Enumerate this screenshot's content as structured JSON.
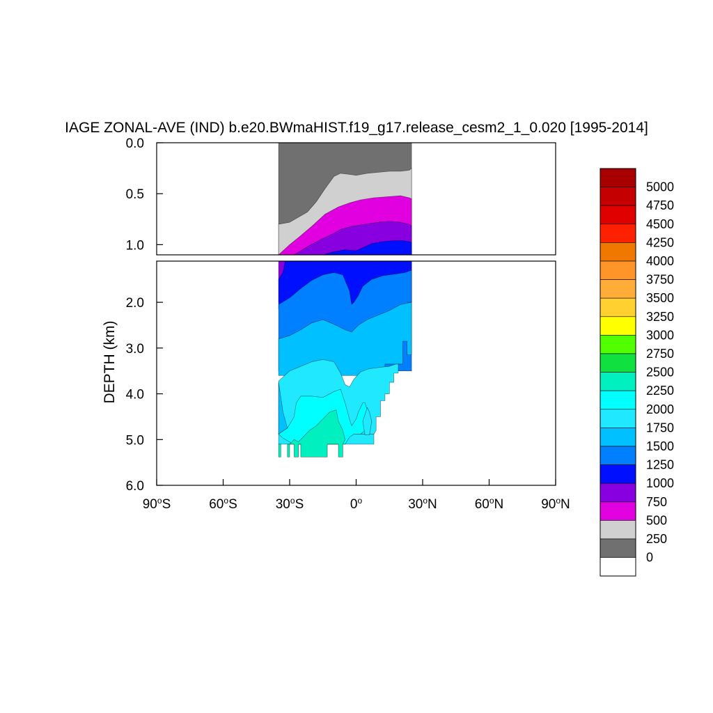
{
  "chart_data": {
    "type": "heatmap",
    "title": "IAGE ZONAL-AVE (IND) b.e20.BWmaHIST.f19_g17.release_cesm2_1_0.020 [1995-2014]",
    "xlabel": "",
    "ylabel": "DEPTH (km)",
    "xlim": [
      -90,
      90
    ],
    "ylim": [
      6.0,
      0.0
    ],
    "x_ticks": [
      {
        "value": -90,
        "num": "90",
        "hemi": "S"
      },
      {
        "value": -60,
        "num": "60",
        "hemi": "S"
      },
      {
        "value": -30,
        "num": "30",
        "hemi": "S"
      },
      {
        "value": 0,
        "num": "0",
        "hemi": ""
      },
      {
        "value": 30,
        "num": "30",
        "hemi": "N"
      },
      {
        "value": 60,
        "num": "60",
        "hemi": "N"
      },
      {
        "value": 90,
        "num": "90",
        "hemi": "N"
      }
    ],
    "upper_panel": {
      "depth_range": [
        0.0,
        1.1
      ],
      "y_ticks": [
        {
          "value": 0.0,
          "label": "0.0"
        },
        {
          "value": 0.5,
          "label": "0.5"
        },
        {
          "value": 1.0,
          "label": "1.0"
        }
      ]
    },
    "lower_panel": {
      "depth_range": [
        1.1,
        6.0
      ],
      "y_ticks": [
        {
          "value": 2.0,
          "label": "2.0"
        },
        {
          "value": 3.0,
          "label": "3.0"
        },
        {
          "value": 4.0,
          "label": "4.0"
        },
        {
          "value": 5.0,
          "label": "5.0"
        },
        {
          "value": 6.0,
          "label": "6.0"
        }
      ]
    },
    "contour_levels": [
      0,
      250,
      500,
      750,
      1000,
      1250,
      1500,
      1750,
      2000,
      2250,
      2500,
      2750,
      3000,
      3250,
      3500,
      3750,
      4000,
      4250,
      4500,
      4750,
      5000
    ],
    "colorbar": {
      "labels": [
        "5000",
        "4750",
        "4500",
        "4250",
        "4000",
        "3750",
        "3500",
        "3250",
        "3000",
        "2750",
        "2500",
        "2250",
        "2000",
        "1750",
        "1500",
        "1250",
        "1000",
        "750",
        "500",
        "250",
        "0"
      ],
      "colors": [
        "#a80000",
        "#c40000",
        "#e00000",
        "#ff2000",
        "#f07800",
        "#ff9428",
        "#ffac38",
        "#ffd030",
        "#ffff00",
        "#50ff00",
        "#10e040",
        "#00f0c0",
        "#00ffff",
        "#20e8ff",
        "#00c0ff",
        "#0080ff",
        "#0010ff",
        "#8800e0",
        "#e000e0",
        "#d0d0d0",
        "#707070",
        "#ffffff"
      ]
    },
    "bands": [
      {
        "range": "0-250",
        "color": "#707070",
        "upper": [
          [
            -35,
            0.0
          ],
          [
            25,
            0.0
          ],
          [
            25,
            0.45
          ],
          [
            -35,
            0.8
          ]
        ],
        "lower": [
          [
            -35,
            0
          ],
          [
            -35,
            0
          ]
        ]
      },
      {
        "range": "250-500",
        "color": "#d0d0d0"
      },
      {
        "range": "500-750",
        "color": "#e000e0"
      },
      {
        "range": "750-1000",
        "color": "#8800e0"
      },
      {
        "range": "1000-1250",
        "color": "#0010ff"
      },
      {
        "range": "1250-1500",
        "color": "#0080ff"
      },
      {
        "range": "1500-1750",
        "color": "#00c0ff"
      },
      {
        "range": "1750-2000",
        "color": "#20e8ff"
      },
      {
        "range": "2000-2250",
        "color": "#00ffff"
      }
    ],
    "grid": false,
    "legend": "right"
  }
}
